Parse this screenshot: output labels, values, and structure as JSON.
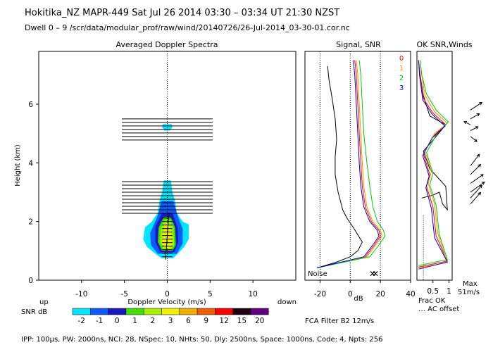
{
  "header": {
    "line1": "Hokitika_NZ   MAPR-449   Sat Jul 26 2014 03:30 – 03:34 UT 21:30 NZST",
    "line2": "Dwell   0  –   9    /scr/data/modular_prof/raw/wind/20140726/26-Jul-2014_03-30-01.cor.nc"
  },
  "footer": {
    "params": "IPP: 100µs,  PW: 2000ns,  NCI:  28,  NSpec: 10,  NHts: 50,  Dly: 2500ns,  Space: 1000ns,  Code: 4,  Npts: 256",
    "filter": "FCA Filter B2 12m/s"
  },
  "colorbar": {
    "label": "SNR dB",
    "ticks": [
      "-2",
      "-1",
      "0",
      "1",
      "2",
      "3",
      "6",
      "9",
      "12",
      "15",
      "20"
    ],
    "colors": [
      "#00e5ff",
      "#0a5cff",
      "#1a18c0",
      "#40e000",
      "#a8f000",
      "#f0f000",
      "#f0b000",
      "#f06000",
      "#ff0000",
      "#200010",
      "#600080"
    ]
  },
  "chart_data": [
    {
      "type": "heatmap",
      "title": "Averaged Doppler Spectra",
      "xlabel": "Doppler Velocity (m/s)",
      "ylabel": "Height (km)",
      "xlim": [
        -15,
        15
      ],
      "ylim": [
        0,
        7.8
      ],
      "x_ticks": [
        "-10",
        "-5",
        "0",
        "5",
        "10"
      ],
      "x_tick_values": [
        -10,
        -5,
        0,
        5,
        10
      ],
      "y_ticks": [
        "0",
        "2",
        "4",
        "6"
      ],
      "y_tick_values": [
        0,
        2,
        4,
        6
      ],
      "left_label": "up",
      "right_label": "down",
      "noise_bars_heights": [
        5.5,
        5.38,
        5.26,
        5.14,
        5.02,
        4.9,
        4.78,
        3.36,
        3.24,
        3.12,
        3.0,
        2.88,
        2.76,
        2.64,
        2.52,
        2.4,
        2.28
      ],
      "echo_layers": [
        {
          "snr": "-2",
          "points": [
            [
              -0.5,
              5.32
            ],
            [
              0.5,
              5.32
            ],
            [
              0.6,
              5.22
            ],
            [
              0.3,
              5.1
            ],
            [
              -0.3,
              5.1
            ],
            [
              -0.6,
              5.22
            ]
          ]
        },
        {
          "snr": "-2",
          "points": [
            [
              -0.4,
              3.4
            ],
            [
              0.4,
              3.4
            ],
            [
              0.6,
              3.0
            ],
            [
              0.9,
              2.7
            ],
            [
              1.1,
              2.3
            ],
            [
              1.8,
              2.0
            ],
            [
              2.5,
              1.9
            ],
            [
              2.5,
              1.4
            ],
            [
              2.0,
              1.15
            ],
            [
              1.4,
              0.95
            ],
            [
              0.7,
              0.75
            ],
            [
              -0.7,
              0.75
            ],
            [
              -1.6,
              0.95
            ],
            [
              -2.4,
              1.15
            ],
            [
              -2.8,
              1.4
            ],
            [
              -2.6,
              1.8
            ],
            [
              -1.8,
              2.0
            ],
            [
              -1.1,
              2.3
            ],
            [
              -0.9,
              2.7
            ],
            [
              -0.6,
              3.0
            ]
          ]
        },
        {
          "snr": "-1",
          "points": [
            [
              -0.7,
              2.7
            ],
            [
              0.7,
              2.7
            ],
            [
              1.2,
              2.2
            ],
            [
              1.8,
              1.75
            ],
            [
              1.8,
              1.25
            ],
            [
              1.1,
              0.9
            ],
            [
              -1.1,
              0.9
            ],
            [
              -1.9,
              1.2
            ],
            [
              -2.0,
              1.6
            ],
            [
              -1.4,
              2.0
            ],
            [
              -1.0,
              2.3
            ]
          ]
        },
        {
          "snr": "0",
          "points": [
            [
              -0.6,
              2.3
            ],
            [
              0.6,
              2.3
            ],
            [
              1.2,
              1.8
            ],
            [
              1.3,
              1.3
            ],
            [
              0.8,
              0.95
            ],
            [
              -0.8,
              0.95
            ],
            [
              -1.4,
              1.3
            ],
            [
              -1.4,
              1.8
            ],
            [
              -1.0,
              2.05
            ]
          ]
        },
        {
          "snr": "1",
          "points": [
            [
              -0.4,
              2.15
            ],
            [
              0.4,
              2.15
            ],
            [
              0.9,
              1.8
            ],
            [
              1.0,
              1.2
            ],
            [
              0.6,
              1.0
            ],
            [
              -0.6,
              1.0
            ],
            [
              -1.1,
              1.3
            ],
            [
              -1.0,
              1.8
            ]
          ]
        },
        {
          "snr": "2",
          "points": [
            [
              -0.3,
              2.05
            ],
            [
              0.3,
              2.05
            ],
            [
              0.7,
              1.8
            ],
            [
              0.8,
              1.2
            ],
            [
              0.45,
              1.05
            ],
            [
              -0.45,
              1.05
            ],
            [
              -0.85,
              1.3
            ],
            [
              -0.75,
              1.75
            ]
          ]
        },
        {
          "snr": "3",
          "points": [
            [
              -0.2,
              1.9
            ],
            [
              0.2,
              1.9
            ],
            [
              0.5,
              1.6
            ],
            [
              0.5,
              1.2
            ],
            [
              0.2,
              1.1
            ],
            [
              -0.2,
              1.1
            ],
            [
              -0.6,
              1.25
            ],
            [
              -0.5,
              1.6
            ]
          ]
        }
      ]
    },
    {
      "type": "line",
      "title": "Signal, SNR",
      "xlabel": "dB",
      "xlim": [
        -30,
        40
      ],
      "x_ticks": [
        "-20",
        "0",
        "20",
        "40"
      ],
      "x_tick_values": [
        -20,
        0,
        20,
        40
      ],
      "noise_label": "Noise",
      "series": [
        {
          "name": "noise",
          "color": "#000000",
          "points": [
            [
              -22,
              0.42
            ],
            [
              -10,
              0.6
            ],
            [
              0,
              0.8
            ],
            [
              5,
              1.0
            ],
            [
              8,
              1.3
            ],
            [
              5,
              1.55
            ],
            [
              2,
              1.8
            ],
            [
              -2,
              2.1
            ],
            [
              -5,
              2.4
            ],
            [
              -8,
              3.0
            ],
            [
              -10,
              3.6
            ],
            [
              -10,
              4.2
            ],
            [
              -9,
              4.8
            ],
            [
              -10,
              5.5
            ],
            [
              -12,
              6.2
            ],
            [
              -14,
              6.8
            ],
            [
              -15,
              7.3
            ]
          ]
        },
        {
          "name": "0",
          "color": "#ff0000",
          "points": [
            [
              -22,
              0.42
            ],
            [
              10,
              0.8
            ],
            [
              16,
              1.2
            ],
            [
              20,
              1.5
            ],
            [
              19,
              1.7
            ],
            [
              14,
              2.0
            ],
            [
              10,
              2.5
            ],
            [
              8,
              3.2
            ],
            [
              7,
              4.0
            ],
            [
              6,
              5.0
            ],
            [
              5,
              6.0
            ],
            [
              4,
              7.0
            ],
            [
              3,
              7.5
            ]
          ]
        },
        {
          "name": "1",
          "color": "#ff8c00",
          "points": [
            [
              -22,
              0.42
            ],
            [
              11,
              0.8
            ],
            [
              17,
              1.2
            ],
            [
              21,
              1.5
            ],
            [
              20,
              1.7
            ],
            [
              15,
              2.0
            ],
            [
              11,
              2.5
            ],
            [
              9,
              3.2
            ],
            [
              8,
              4.0
            ],
            [
              7,
              5.0
            ],
            [
              6,
              6.0
            ],
            [
              5,
              7.0
            ],
            [
              4,
              7.5
            ]
          ]
        },
        {
          "name": "2",
          "color": "#00cc00",
          "points": [
            [
              -22,
              0.42
            ],
            [
              13,
              0.8
            ],
            [
              19,
              1.2
            ],
            [
              23,
              1.5
            ],
            [
              22,
              1.7
            ],
            [
              18,
              2.0
            ],
            [
              15,
              2.5
            ],
            [
              13,
              3.2
            ],
            [
              11,
              4.0
            ],
            [
              9,
              5.0
            ],
            [
              8,
              6.0
            ],
            [
              7,
              7.0
            ],
            [
              6,
              7.5
            ]
          ]
        },
        {
          "name": "3",
          "color": "#0000dd",
          "points": [
            [
              -22,
              0.42
            ],
            [
              9,
              0.8
            ],
            [
              15,
              1.2
            ],
            [
              19,
              1.5
            ],
            [
              18,
              1.7
            ],
            [
              13,
              2.0
            ],
            [
              9,
              2.5
            ],
            [
              7,
              3.2
            ],
            [
              6,
              4.0
            ],
            [
              5,
              5.0
            ],
            [
              4,
              6.0
            ],
            [
              3,
              7.0
            ],
            [
              2,
              7.5
            ]
          ]
        }
      ]
    },
    {
      "type": "line",
      "title": "OK SNR,Winds",
      "xlim": [
        0,
        1.1
      ],
      "x_ticks": [
        "0.5",
        "1"
      ],
      "x_tick_values": [
        0.5,
        1
      ],
      "legend": [
        "0",
        "1",
        "2",
        "3"
      ],
      "legend_colors": [
        "#ff0000",
        "#ff8c00",
        "#00cc00",
        "#0000dd"
      ],
      "frac_ok_label": "Frac OK",
      "ac_offset_label": "… AC offset",
      "max_label": "Max",
      "max_value": "51m/s",
      "series": [
        {
          "name": "frac_ok",
          "color": "#000000",
          "points": [
            [
              0.15,
              2.8
            ],
            [
              0.5,
              2.9
            ],
            [
              0.7,
              3.0
            ],
            [
              0.8,
              2.6
            ],
            [
              0.95,
              2.4
            ],
            [
              0.9,
              3.2
            ],
            [
              0.4,
              3.8
            ],
            [
              0.2,
              4.4
            ],
            [
              0.6,
              4.9
            ],
            [
              0.9,
              5.3
            ],
            [
              0.4,
              5.6
            ],
            [
              0.2,
              6.3
            ],
            [
              0.1,
              7.0
            ]
          ]
        },
        {
          "name": "0",
          "color": "#ff0000",
          "points": [
            [
              0.05,
              0.45
            ],
            [
              0.95,
              0.65
            ],
            [
              0.6,
              1.5
            ],
            [
              0.5,
              2.5
            ],
            [
              0.3,
              3.2
            ],
            [
              0.4,
              3.6
            ],
            [
              0.2,
              4.3
            ],
            [
              0.5,
              4.9
            ],
            [
              0.9,
              5.3
            ],
            [
              0.5,
              5.7
            ],
            [
              0.2,
              6.2
            ],
            [
              0.1,
              7.0
            ],
            [
              0.05,
              7.5
            ]
          ]
        },
        {
          "name": "1",
          "color": "#ff8c00",
          "points": [
            [
              0.05,
              0.42
            ],
            [
              0.95,
              0.6
            ],
            [
              0.65,
              1.6
            ],
            [
              0.55,
              2.6
            ],
            [
              0.35,
              3.3
            ],
            [
              0.45,
              3.7
            ],
            [
              0.25,
              4.4
            ],
            [
              0.55,
              5.0
            ],
            [
              0.95,
              5.35
            ],
            [
              0.55,
              5.75
            ],
            [
              0.25,
              6.3
            ],
            [
              0.15,
              7.0
            ],
            [
              0.1,
              7.5
            ]
          ]
        },
        {
          "name": "2",
          "color": "#00cc00",
          "points": [
            [
              0.05,
              0.5
            ],
            [
              0.95,
              0.7
            ],
            [
              0.7,
              1.55
            ],
            [
              0.6,
              2.55
            ],
            [
              0.4,
              3.25
            ],
            [
              0.5,
              3.65
            ],
            [
              0.3,
              4.35
            ],
            [
              0.6,
              4.95
            ],
            [
              0.98,
              5.4
            ],
            [
              0.6,
              5.8
            ],
            [
              0.3,
              6.35
            ],
            [
              0.15,
              7.0
            ],
            [
              0.1,
              7.5
            ]
          ]
        },
        {
          "name": "3",
          "color": "#0000dd",
          "points": [
            [
              0.05,
              0.38
            ],
            [
              0.95,
              0.62
            ],
            [
              0.55,
              1.45
            ],
            [
              0.45,
              2.45
            ],
            [
              0.28,
              3.15
            ],
            [
              0.38,
              3.55
            ],
            [
              0.18,
              4.25
            ],
            [
              0.48,
              4.85
            ],
            [
              0.88,
              5.25
            ],
            [
              0.48,
              5.65
            ],
            [
              0.18,
              6.15
            ],
            [
              0.08,
              7.0
            ],
            [
              0.05,
              7.5
            ]
          ]
        }
      ],
      "wind_vectors": [
        {
          "h": 5.8,
          "u": 18,
          "v": 12
        },
        {
          "h": 5.5,
          "u": 14,
          "v": 8
        },
        {
          "h": 5.3,
          "u": -10,
          "v": 5
        },
        {
          "h": 5.1,
          "u": 12,
          "v": 6
        },
        {
          "h": 4.9,
          "u": 10,
          "v": -8
        },
        {
          "h": 3.9,
          "u": 14,
          "v": 18
        },
        {
          "h": 3.6,
          "u": 16,
          "v": 16
        },
        {
          "h": 3.3,
          "u": 20,
          "v": 14
        },
        {
          "h": 3.0,
          "u": 22,
          "v": 16
        },
        {
          "h": 2.8,
          "u": 18,
          "v": 20
        },
        {
          "h": 2.6,
          "u": 16,
          "v": 18
        }
      ]
    }
  ]
}
